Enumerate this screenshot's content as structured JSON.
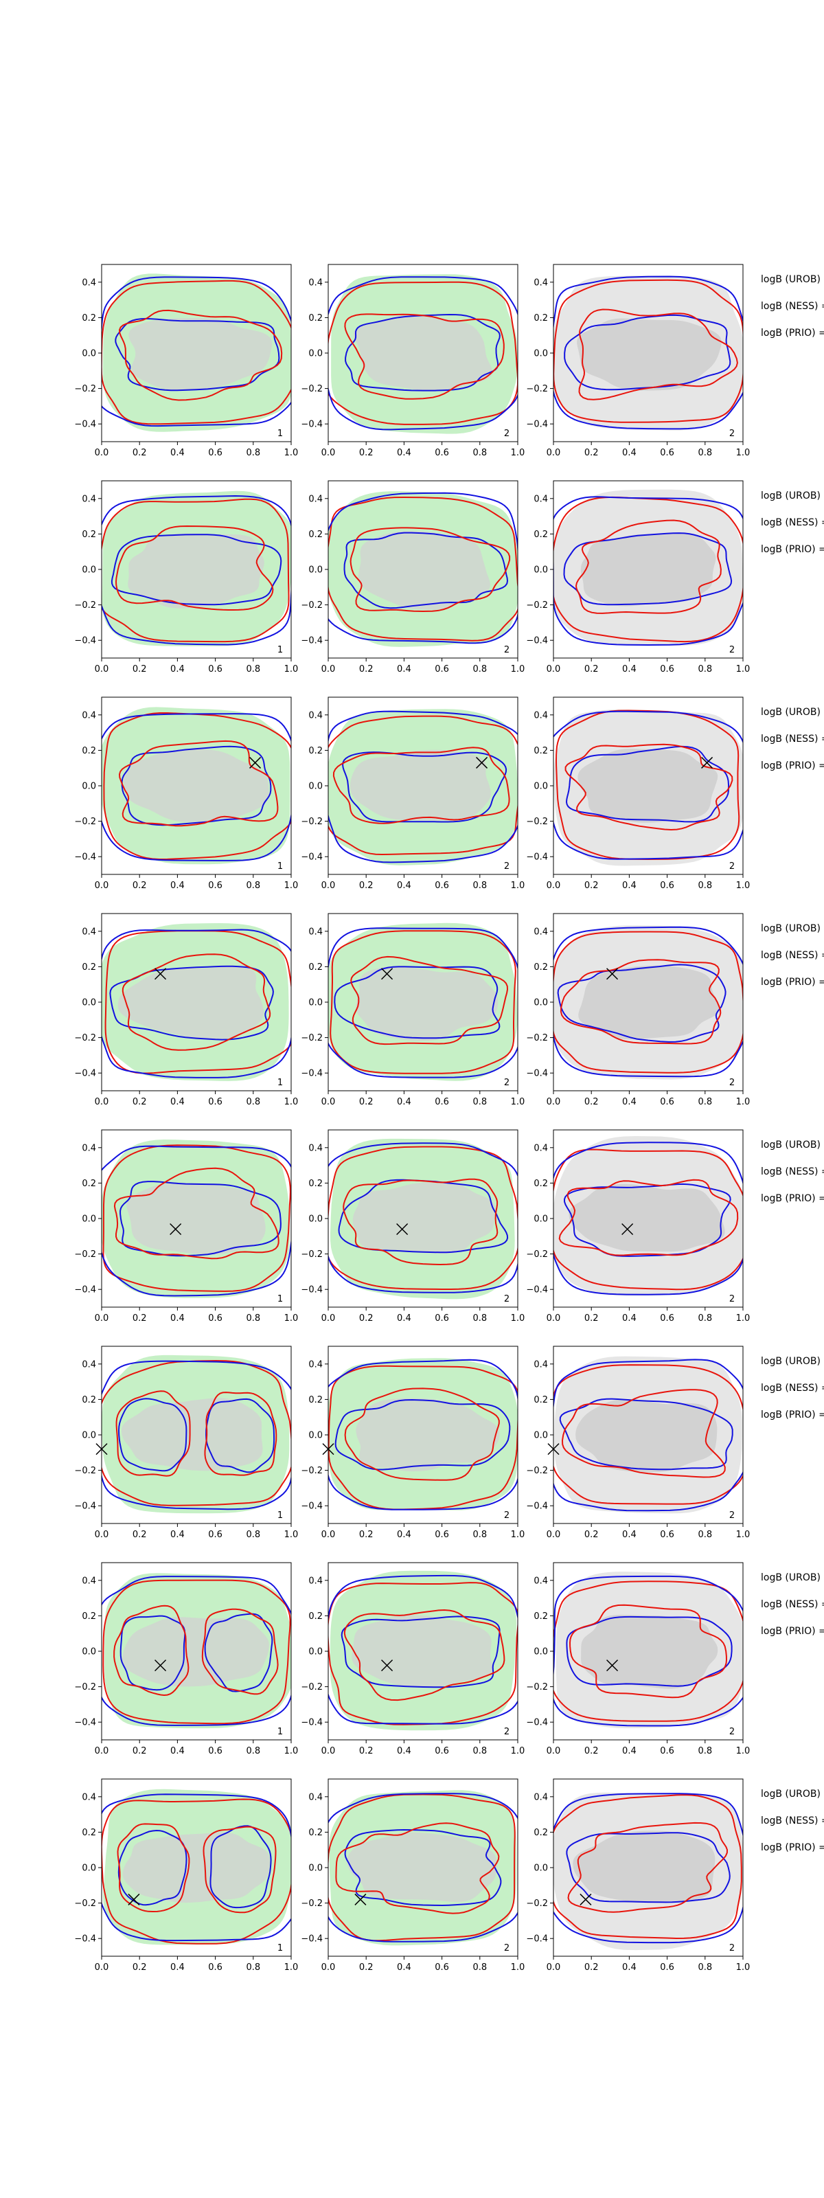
{
  "chart_data": {
    "type": "contour",
    "layout": {
      "rows": 8,
      "cols": 3
    },
    "xlim": [
      0.0,
      1.0
    ],
    "ylim": [
      -0.5,
      0.5
    ],
    "xticks": [
      0.0,
      0.2,
      0.4,
      0.6,
      0.8,
      1.0
    ],
    "yticks": [
      -0.4,
      -0.2,
      0.0,
      0.2,
      0.4
    ],
    "xtick_labels": [
      "0.0",
      "0.2",
      "0.4",
      "0.6",
      "0.8",
      "1.0"
    ],
    "ytick_labels": [
      "−0.4",
      "−0.2",
      "0.0",
      "0.2",
      "0.4"
    ],
    "panel_annotations": [
      "1",
      "2",
      "2"
    ],
    "panel_fills": [
      "green",
      "green",
      "gray"
    ],
    "colors": {
      "red": "#e8140c",
      "blue": "#1212e0",
      "green_fill": "#c6f0c6",
      "gray_fill": "#e6e6e6",
      "inner_fill": "#d2d2d2"
    },
    "markers": [
      null,
      null,
      {
        "x": 0.81,
        "y": 0.13
      },
      {
        "x": 0.31,
        "y": 0.16
      },
      {
        "x": 0.39,
        "y": -0.06
      },
      {
        "x": 0.0,
        "y": -0.08
      },
      {
        "x": 0.31,
        "y": -0.08
      },
      {
        "x": 0.17,
        "y": -0.18
      }
    ],
    "row_labels": [
      [
        "logB (UROB) =",
        "logB (NESS) =",
        "logB (PRIO) ="
      ],
      [
        "logB (UROB) =",
        "logB (NESS) =",
        "logB (PRIO) ="
      ],
      [
        "logB (UROB) =",
        "logB (NESS) =",
        "logB (PRIO) ="
      ],
      [
        "logB (UROB) =",
        "logB (NESS) =",
        "logB (PRIO) ="
      ],
      [
        "logB (UROB) =",
        "logB (NESS) =",
        "logB (PRIO) ="
      ],
      [
        "logB (UROB) =",
        "logB (NESS) =",
        "logB (PRIO) ="
      ],
      [
        "logB (UROB) =",
        "logB (NESS) =",
        "logB (PRIO) ="
      ],
      [
        "logB (UROB) =",
        "logB (NESS) =",
        "logB (PRIO) ="
      ]
    ]
  }
}
